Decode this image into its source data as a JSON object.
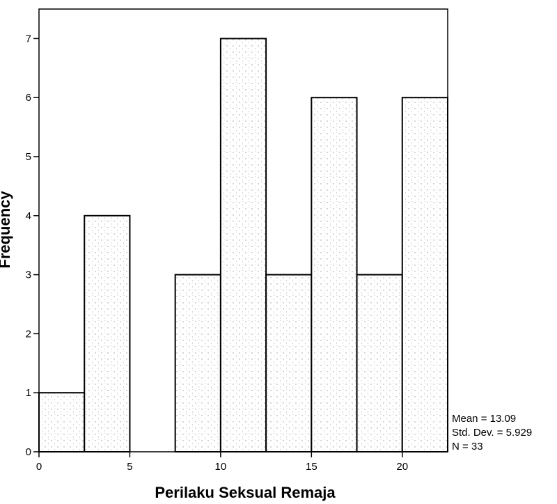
{
  "chart_data": {
    "type": "bar",
    "title": "",
    "xlabel": "Perilaku Seksual Remaja",
    "ylabel": "Frequency",
    "x_ticks": [
      0,
      5,
      10,
      15,
      20
    ],
    "y_ticks": [
      0,
      1,
      2,
      3,
      4,
      5,
      6,
      7
    ],
    "xlim": [
      0,
      22.5
    ],
    "ylim": [
      0,
      7.5
    ],
    "grid": false,
    "bins": [
      {
        "start": 0,
        "end": 2.5,
        "value": 1
      },
      {
        "start": 2.5,
        "end": 5,
        "value": 4
      },
      {
        "start": 5,
        "end": 7.5,
        "value": 0
      },
      {
        "start": 7.5,
        "end": 10,
        "value": 3
      },
      {
        "start": 10,
        "end": 12.5,
        "value": 7
      },
      {
        "start": 12.5,
        "end": 15,
        "value": 3
      },
      {
        "start": 15,
        "end": 17.5,
        "value": 6
      },
      {
        "start": 17.5,
        "end": 20,
        "value": 3
      },
      {
        "start": 20,
        "end": 22.5,
        "value": 6
      }
    ],
    "stats": {
      "mean": "Mean = 13.09",
      "std": "Std. Dev. = 5.929",
      "n": "N = 33"
    }
  }
}
